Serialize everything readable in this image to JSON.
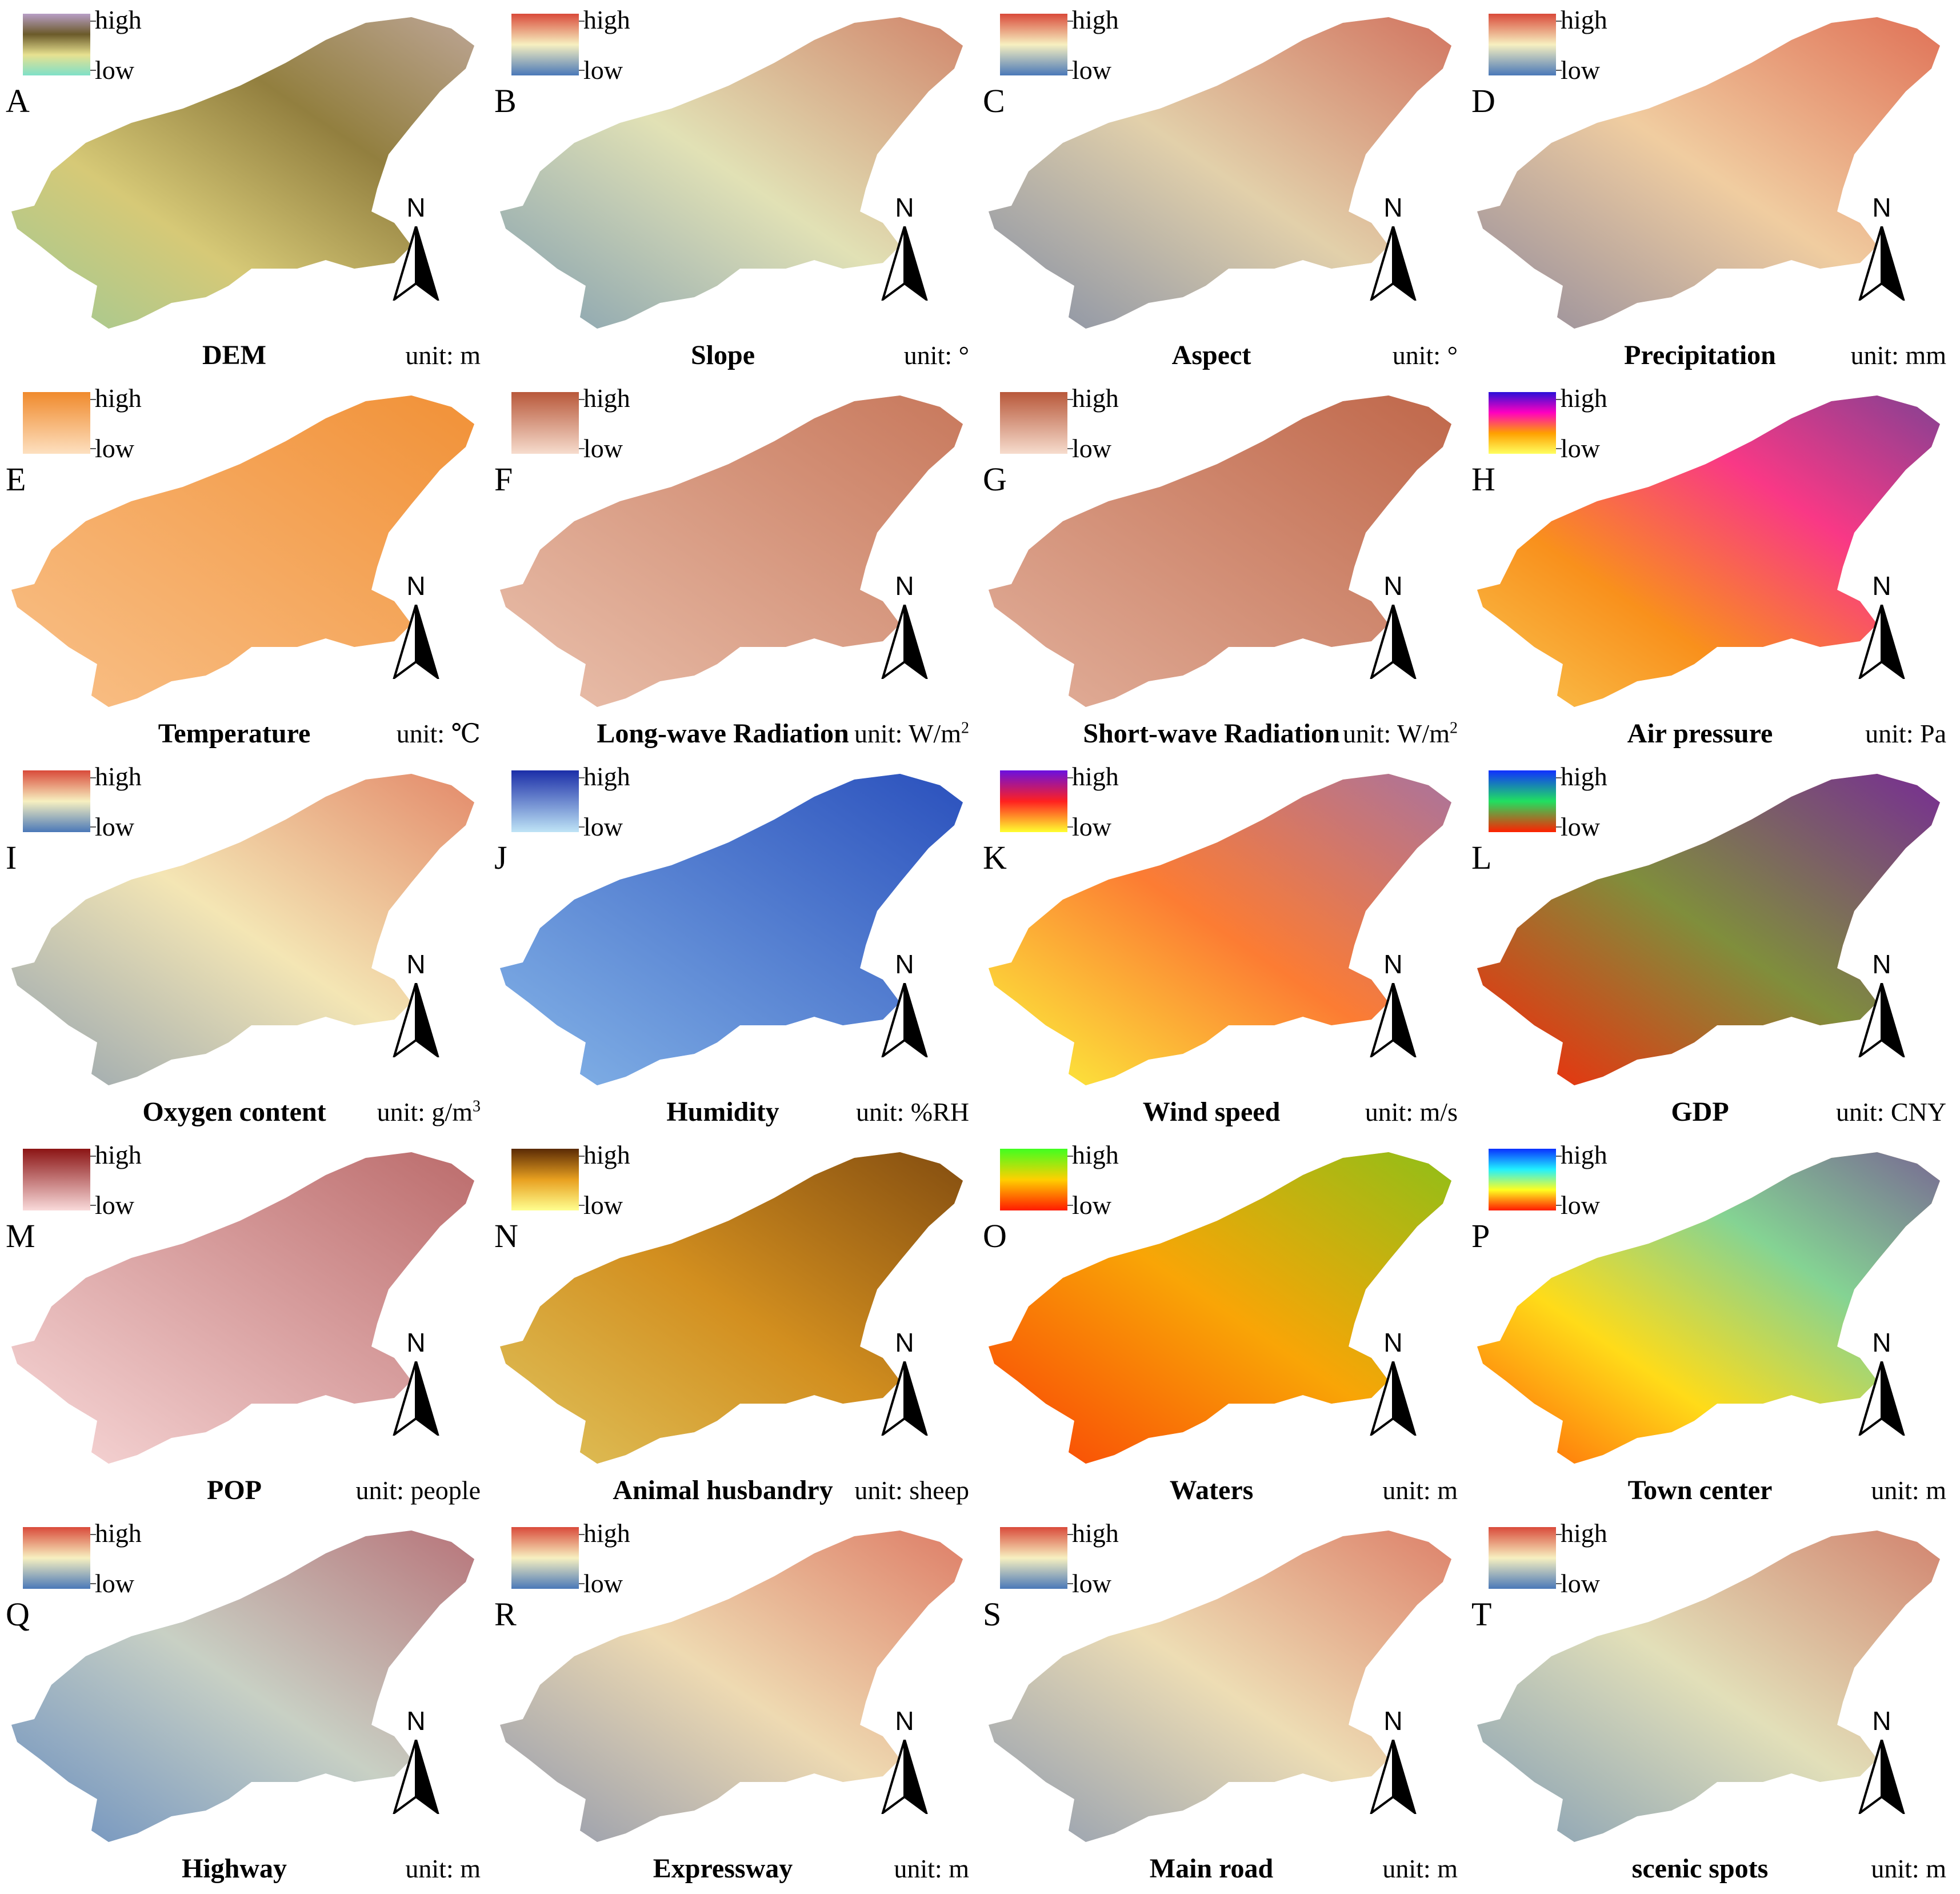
{
  "legend": {
    "high_label": "high",
    "low_label": "low"
  },
  "north_label": "N",
  "panels": [
    {
      "letter": "A",
      "title": "DEM",
      "unit": "unit: m",
      "colors": [
        "#b89fc6",
        "#6b5a2a",
        "#e7e190",
        "#7fe0c8"
      ],
      "fill": "#c2ac58"
    },
    {
      "letter": "B",
      "title": "Slope",
      "unit": "unit: °",
      "colors": [
        "#d94a3a",
        "#f7f0c0",
        "#4a78b8"
      ],
      "fill": "#c7cfa8"
    },
    {
      "letter": "C",
      "title": "Aspect",
      "unit": "unit: °",
      "colors": [
        "#d94a3a",
        "#f7f0c0",
        "#4a78b8"
      ],
      "fill": "#c9a98f"
    },
    {
      "letter": "D",
      "title": "Precipitation",
      "unit": "unit: mm",
      "colors": [
        "#d94a3a",
        "#f7f0c0",
        "#4a78b8"
      ],
      "fill": "#e8a27a"
    },
    {
      "letter": "E",
      "title": "Temperature",
      "unit": "unit: ℃",
      "colors": [
        "#f08a2c",
        "#fde0c0"
      ],
      "fill": "#f39a45"
    },
    {
      "letter": "F",
      "title": "Long-wave Radiation",
      "unit": "unit: W/m",
      "unit_sup": "2",
      "colors": [
        "#b8583a",
        "#f6dccd"
      ],
      "fill": "#dba086"
    },
    {
      "letter": "G",
      "title": "Short-wave Radiation",
      "unit": "unit: W/m",
      "unit_sup": "2",
      "colors": [
        "#b8583a",
        "#f6dccd"
      ],
      "fill": "#c97a5e"
    },
    {
      "letter": "H",
      "title": "Air pressure",
      "unit": "unit: Pa",
      "colors": [
        "#2a10d8",
        "#ff00c0",
        "#ffa000",
        "#ffff60"
      ],
      "fill": "#f27d3e"
    },
    {
      "letter": "I",
      "title": "Oxygen content",
      "unit": "unit: g/m",
      "unit_sup": "3",
      "colors": [
        "#d94a3a",
        "#f7f0c0",
        "#4a78b8"
      ],
      "fill": "#f0d9a6"
    },
    {
      "letter": "J",
      "title": "Humidity",
      "unit": "unit: %RH",
      "colors": [
        "#1b2ea8",
        "#bfe4f6"
      ],
      "fill": "#3e7bd6"
    },
    {
      "letter": "K",
      "title": "Wind speed",
      "unit": "unit: m/s",
      "colors": [
        "#6a10e0",
        "#ff2020",
        "#ffff30"
      ],
      "fill": "#f9ec4a"
    },
    {
      "letter": "L",
      "title": "GDP",
      "unit": "unit: CNY",
      "colors": [
        "#1030ff",
        "#20e060",
        "#ff2000"
      ],
      "fill": "#f42a10"
    },
    {
      "letter": "M",
      "title": "POP",
      "unit": "unit: people",
      "colors": [
        "#8b1414",
        "#f9dada"
      ],
      "fill": "#f7d8d8"
    },
    {
      "letter": "N",
      "title": "Animal husbandry",
      "unit": "unit: sheep",
      "colors": [
        "#5a2a05",
        "#e8a020",
        "#ffff90"
      ],
      "fill": "#b87a1e"
    },
    {
      "letter": "O",
      "title": "Waters",
      "unit": "unit: m",
      "colors": [
        "#40ff20",
        "#ffd000",
        "#ff1a00"
      ],
      "fill": "#f2700e"
    },
    {
      "letter": "P",
      "title": "Town center",
      "unit": "unit: m",
      "colors": [
        "#0a30ff",
        "#20f0ff",
        "#ffff20",
        "#ff1a00"
      ],
      "fill": "#ffb010"
    },
    {
      "letter": "Q",
      "title": "Highway",
      "unit": "unit: m",
      "colors": [
        "#d94a3a",
        "#f7f0c0",
        "#4a78b8"
      ],
      "fill": "#8fa9c9"
    },
    {
      "letter": "R",
      "title": "Expressway",
      "unit": "unit: m",
      "colors": [
        "#d94a3a",
        "#f7f0c0",
        "#4a78b8"
      ],
      "fill": "#e4bfa0"
    },
    {
      "letter": "S",
      "title": "Main road",
      "unit": "unit: m",
      "colors": [
        "#d94a3a",
        "#f7f0c0",
        "#4a78b8"
      ],
      "fill": "#e2c6a6"
    },
    {
      "letter": "T",
      "title": "scenic spots",
      "unit": "unit: m",
      "colors": [
        "#d94a3a",
        "#f7f0c0",
        "#4a78b8"
      ],
      "fill": "#c9cbb0"
    }
  ]
}
